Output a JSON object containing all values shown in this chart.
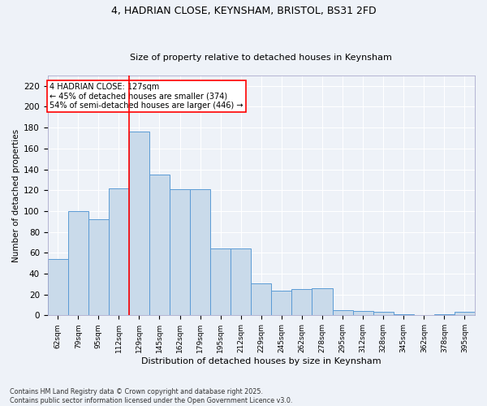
{
  "title_line1": "4, HADRIAN CLOSE, KEYNSHAM, BRISTOL, BS31 2FD",
  "title_line2": "Size of property relative to detached houses in Keynsham",
  "xlabel": "Distribution of detached houses by size in Keynsham",
  "ylabel": "Number of detached properties",
  "categories": [
    "62sqm",
    "79sqm",
    "95sqm",
    "112sqm",
    "129sqm",
    "145sqm",
    "162sqm",
    "179sqm",
    "195sqm",
    "212sqm",
    "229sqm",
    "245sqm",
    "262sqm",
    "278sqm",
    "295sqm",
    "312sqm",
    "328sqm",
    "345sqm",
    "362sqm",
    "378sqm",
    "395sqm"
  ],
  "values": [
    54,
    100,
    92,
    122,
    176,
    135,
    121,
    121,
    64,
    64,
    31,
    24,
    25,
    26,
    5,
    4,
    3,
    1,
    0,
    1,
    3
  ],
  "bar_color": "#c9daea",
  "bar_edge_color": "#5b9bd5",
  "vline_index": 4,
  "vline_color": "red",
  "annotation_text": "4 HADRIAN CLOSE: 127sqm\n← 45% of detached houses are smaller (374)\n54% of semi-detached houses are larger (446) →",
  "annotation_box_color": "white",
  "annotation_box_edge": "red",
  "ylim": [
    0,
    230
  ],
  "yticks": [
    0,
    20,
    40,
    60,
    80,
    100,
    120,
    140,
    160,
    180,
    200,
    220
  ],
  "footer_line1": "Contains HM Land Registry data © Crown copyright and database right 2025.",
  "footer_line2": "Contains public sector information licensed under the Open Government Licence v3.0.",
  "background_color": "#eef2f8",
  "grid_color": "white"
}
